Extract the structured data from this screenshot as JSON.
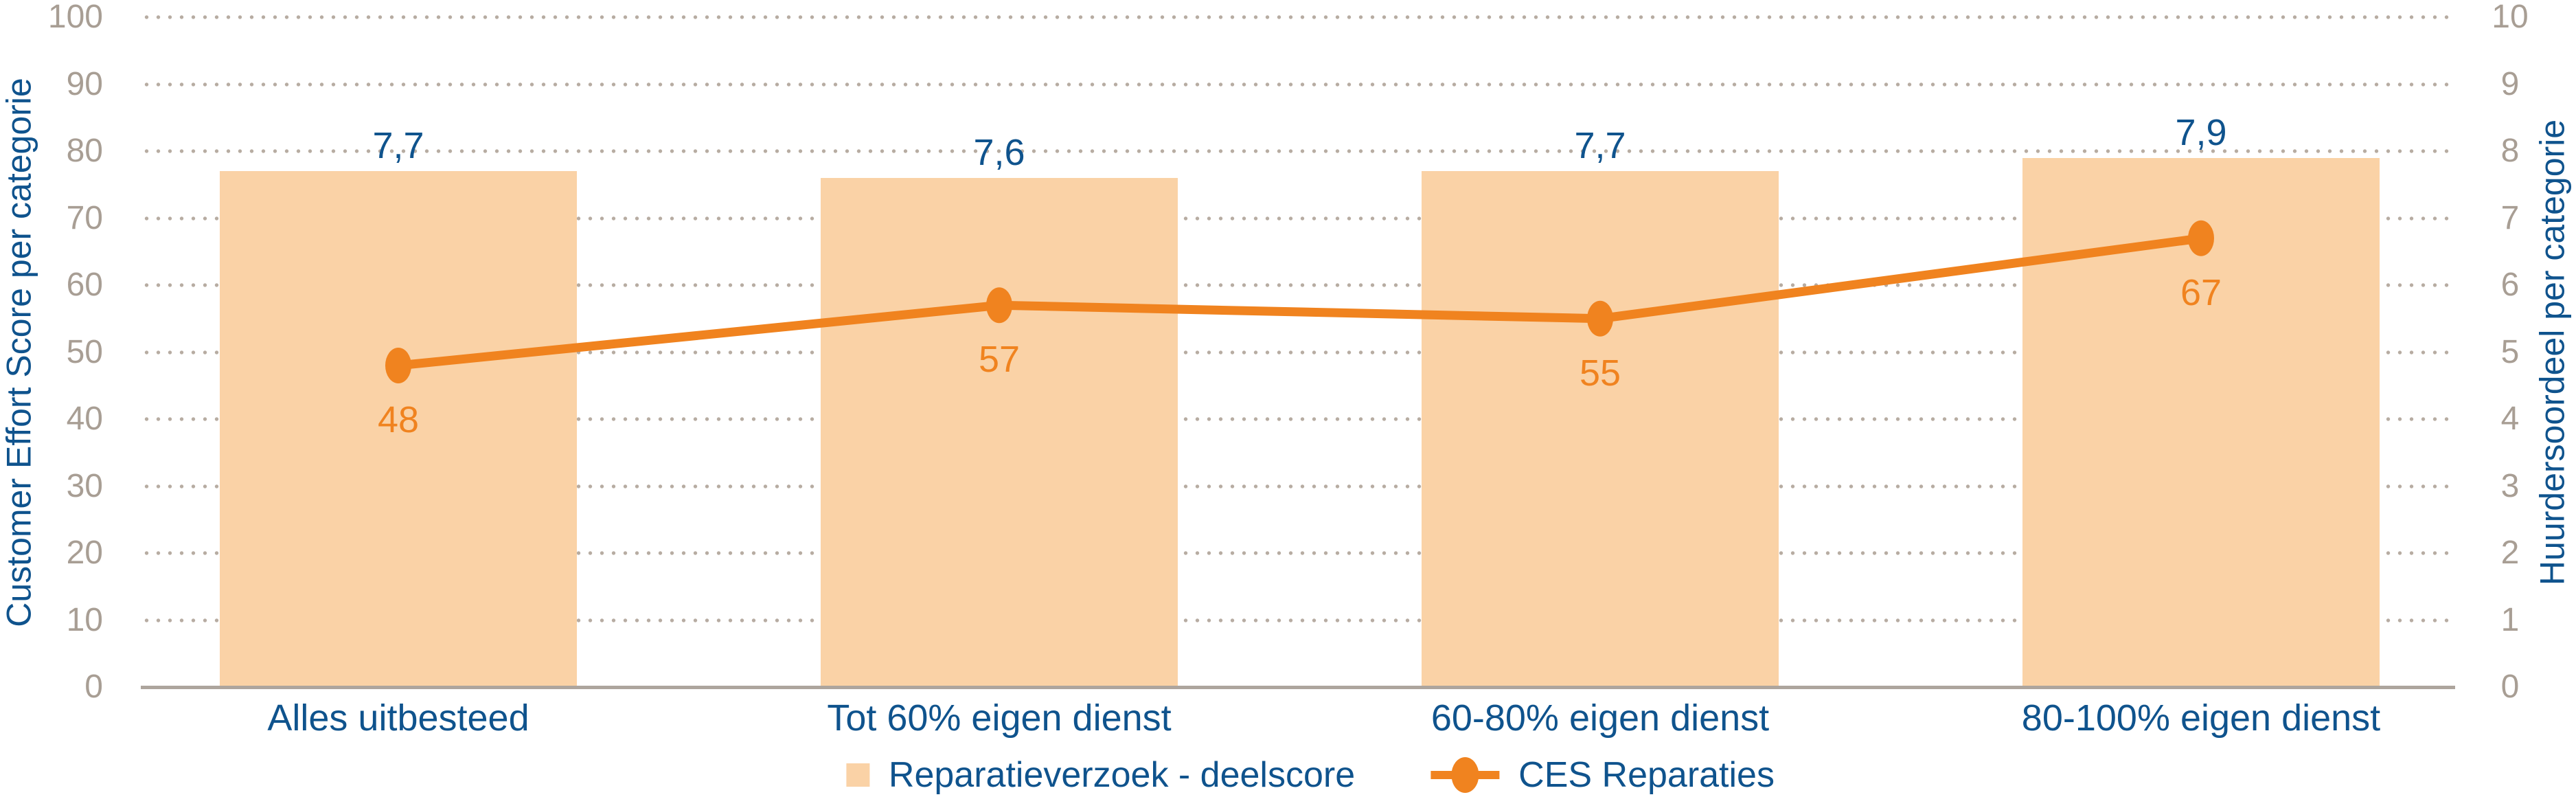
{
  "chart_data": {
    "type": "combo-bar-line",
    "categories": [
      "Alles uitbesteed",
      "Tot 60% eigen dienst",
      "60-80% eigen dienst",
      "80-100% eigen dienst"
    ],
    "series": [
      {
        "name": "Reparatieverzoek - deelscore",
        "type": "bar",
        "axis": "right",
        "values": [
          7.7,
          7.6,
          7.7,
          7.9
        ],
        "value_labels": [
          "7,7",
          "7,6",
          "7,7",
          "7,9"
        ]
      },
      {
        "name": "CES Reparaties",
        "type": "line",
        "axis": "left",
        "values": [
          48,
          57,
          55,
          67
        ],
        "value_labels": [
          "48",
          "57",
          "55",
          "67"
        ]
      }
    ],
    "axes": {
      "left": {
        "title": "Customer Effort Score per categorie",
        "min": 0,
        "max": 100,
        "step": 10,
        "tick_labels": [
          "0",
          "10",
          "20",
          "30",
          "40",
          "50",
          "60",
          "70",
          "80",
          "90",
          "100"
        ]
      },
      "right": {
        "title": "Huurdersoordeel per categorie",
        "min": 0,
        "max": 10,
        "step": 1,
        "tick_labels": [
          "0",
          "1",
          "2",
          "3",
          "4",
          "5",
          "6",
          "7",
          "8",
          "9",
          "10"
        ]
      }
    },
    "grid": {
      "orientation": "horizontal",
      "style": "dotted"
    },
    "legend": {
      "position": "bottom-center",
      "items": [
        "Reparatieverzoek - deelscore",
        "CES Reparaties"
      ]
    }
  },
  "colors": {
    "background": "#FFFFFF",
    "bar_fill": "#FAD2A6",
    "line_orange": "#F0831F",
    "label_blue": "#0F538D",
    "tick_gray": "#A89E94",
    "grid_dot": "#B7ACA2",
    "axis_line": "#ADA59D"
  }
}
